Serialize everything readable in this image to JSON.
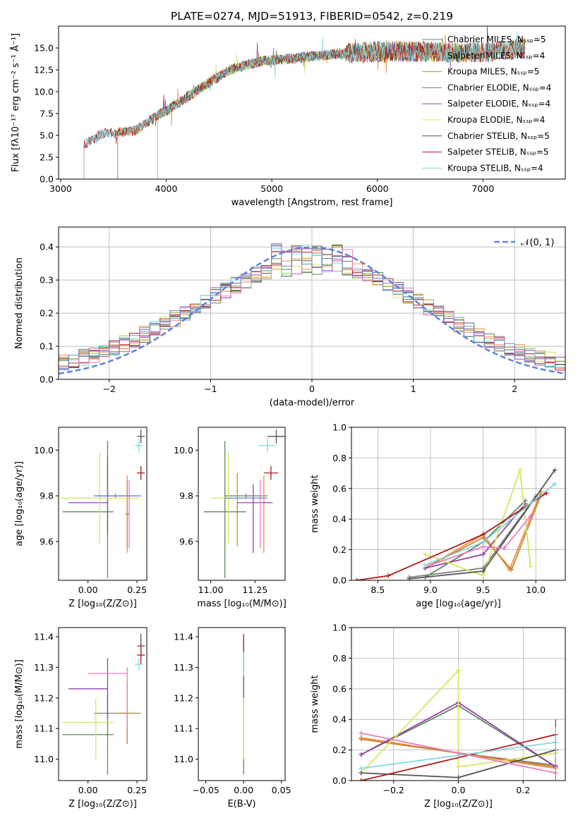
{
  "figure": {
    "title": "PLATE=0274, MJD=51913, FIBERID=0542, z=0.219"
  },
  "chart_data": [
    {
      "id": "spectrum",
      "type": "line",
      "xlabel": "wavelength [Angstrom, rest frame]",
      "ylabel": "Flux [fλ10⁻¹⁷ erg cm⁻² s⁻¹ Å⁻¹]",
      "xlim": [
        2980,
        7780
      ],
      "ylim": [
        0,
        17.5
      ],
      "xticks": [
        3000,
        4000,
        5000,
        6000,
        7000
      ],
      "yticks": [
        0.0,
        2.5,
        5.0,
        7.5,
        10.0,
        12.5,
        15.0
      ],
      "xtick_labels": [
        "3000",
        "4000",
        "5000",
        "6000",
        "7000"
      ],
      "ytick_labels": [
        "0.0",
        "2.5",
        "5.0",
        "7.5",
        "10.0",
        "12.5",
        "15.0"
      ],
      "legend_position": "right",
      "series": [
        {
          "name": "Chabrier MILES, N_SSP=5",
          "color": "#808080",
          "x_start": 3540,
          "x_end": 7400
        },
        {
          "name": "Salpeter MILES, N_SSP=4",
          "color": "#f28a4a",
          "x_start": 3540,
          "x_end": 7400
        },
        {
          "name": "Kroupa MILES, N_SSP=5",
          "color": "#c58a2c",
          "x_start": 3540,
          "x_end": 7400
        },
        {
          "name": "Chabrier ELODIE, N_SSP=4",
          "color": "#5c8a5c",
          "x_start": 3920,
          "x_end": 6800
        },
        {
          "name": "Salpeter ELODIE, N_SSP=4",
          "color": "#9a3fb0",
          "x_start": 3920,
          "x_end": 6800
        },
        {
          "name": "Kroupa ELODIE, N_SSP=4",
          "color": "#d9e55a",
          "x_start": 3920,
          "x_end": 6800
        },
        {
          "name": "Chabrier STELIB, N_SSP=5",
          "color": "#555555",
          "x_start": 3220,
          "x_end": 7400
        },
        {
          "name": "Salpeter STELIB, N_SSP=5",
          "color": "#b01c1c",
          "x_start": 3220,
          "x_end": 7400
        },
        {
          "name": "Kroupa STELIB, N_SSP=4",
          "color": "#7fd8e0",
          "x_start": 3220,
          "x_end": 7400
        }
      ],
      "continuum": {
        "x": [
          3220,
          3400,
          3700,
          3900,
          4000,
          4300,
          4600,
          4900,
          5200,
          5500,
          5800,
          6100,
          6400,
          6800,
          7100,
          7400
        ],
        "y": [
          4.0,
          5.2,
          5.5,
          7.2,
          7.8,
          10.2,
          12.5,
          13.5,
          13.8,
          14.2,
          14.5,
          14.6,
          14.6,
          14.4,
          14.6,
          15.0
        ]
      }
    },
    {
      "id": "residuals",
      "type": "line",
      "xlabel": "(data-model)/error",
      "ylabel": "Normed distribution",
      "xlim": [
        -2.5,
        2.5
      ],
      "ylim": [
        0,
        0.46
      ],
      "xticks": [
        -2,
        -1,
        0,
        1,
        2
      ],
      "yticks": [
        0.0,
        0.1,
        0.2,
        0.3,
        0.4
      ],
      "xtick_labels": [
        "−2",
        "−1",
        "0",
        "1",
        "2"
      ],
      "ytick_labels": [
        "0.0",
        "0.1",
        "0.2",
        "0.3",
        "0.4"
      ],
      "grid": true,
      "legend_position": "top-right",
      "legend": "𝒩(0, 1)",
      "reference_curve": {
        "name": "𝒩(0, 1)",
        "color": "#5e84d6"
      }
    },
    {
      "id": "age-vs-z",
      "type": "scatter",
      "xlabel": "Z [log₁₀(Z/Z⊙)]",
      "ylabel": "age [log₁₀(age/yr)]",
      "xlim": [
        -0.15,
        0.3
      ],
      "ylim": [
        9.43,
        10.1
      ],
      "xticks": [
        0.0,
        0.25
      ],
      "yticks": [
        9.6,
        9.8,
        10.0
      ],
      "xtick_labels": [
        "0.00",
        "0.25"
      ],
      "ytick_labels": [
        "9.6",
        "9.8",
        "10.0"
      ],
      "points": [
        {
          "color": "#808080",
          "x": 0.14,
          "y": 9.8,
          "xerr": 0.1,
          "yerr": 0.01
        },
        {
          "color": "#f28a4a",
          "x": 0.2,
          "y": 9.72,
          "xerr": 0.01,
          "yerr": 0.17
        },
        {
          "color": "#c58a2c",
          "x": 0.2,
          "y": 9.72,
          "xerr": 0.01,
          "yerr": 0.15
        },
        {
          "color": "#5c8a5c",
          "x": 0.0,
          "y": 9.73,
          "xerr": 0.13,
          "yerr": 0.0
        },
        {
          "color": "#5c8a5c",
          "x": 0.1,
          "y": 9.74,
          "xerr": 0.0,
          "yerr": 0.3
        },
        {
          "color": "#9a3fb0",
          "x": 0.1,
          "y": 9.8,
          "xerr": 0.0,
          "yerr": 0.17
        },
        {
          "color": "#9a3fb0",
          "x": 0.0,
          "y": 9.77,
          "xerr": 0.1,
          "yerr": 0.0
        },
        {
          "color": "#d9e55a",
          "x": 0.06,
          "y": 9.79,
          "xerr": 0.2,
          "yerr": 0.0
        },
        {
          "color": "#d9e55a",
          "x": 0.06,
          "y": 9.79,
          "xerr": 0.0,
          "yerr": 0.2
        },
        {
          "color": "#555555",
          "x": 0.27,
          "y": 10.06,
          "xerr": 0.02,
          "yerr": 0.03
        },
        {
          "color": "#b01c1c",
          "x": 0.27,
          "y": 9.9,
          "xerr": 0.02,
          "yerr": 0.03
        },
        {
          "color": "#7fd8e0",
          "x": 0.26,
          "y": 10.02,
          "xerr": 0.02,
          "yerr": 0.03
        },
        {
          "color": "#e87ec1",
          "x": 0.21,
          "y": 9.72,
          "xerr": 0.0,
          "yerr": 0.15
        },
        {
          "color": "#6688cc",
          "x": 0.15,
          "y": 9.8,
          "xerr": 0.12,
          "yerr": 0.0
        }
      ]
    },
    {
      "id": "age-vs-mass",
      "type": "scatter",
      "xlabel": "mass [log₁₀(M/M⊙)]",
      "ylabel": "",
      "xlim": [
        10.93,
        11.42
      ],
      "ylim": [
        9.43,
        10.1
      ],
      "xticks": [
        11.0,
        11.25
      ],
      "yticks": [
        9.6,
        9.8,
        10.0
      ],
      "xtick_labels": [
        "11.00",
        "11.25"
      ],
      "ytick_labels": [
        "9.6",
        "9.8",
        "10.0"
      ]
    },
    {
      "id": "massweight-vs-age",
      "type": "line",
      "xlabel": "age  [log₁₀(age/yr)]",
      "ylabel": "mass weight",
      "xlim": [
        8.25,
        10.28
      ],
      "ylim": [
        0,
        1
      ],
      "xticks": [
        8.5,
        9.0,
        9.5,
        10.0
      ],
      "yticks": [
        0.0,
        0.2,
        0.4,
        0.6,
        0.8,
        1.0
      ],
      "xtick_labels": [
        "8.5",
        "9.0",
        "9.5",
        "10.0"
      ],
      "ytick_labels": [
        "0.0",
        "0.2",
        "0.4",
        "0.6",
        "0.8",
        "1.0"
      ],
      "grid": true,
      "series": [
        {
          "color": "#808080",
          "x": [
            8.8,
            9.5,
            10.0
          ],
          "y": [
            0.02,
            0.08,
            0.55
          ]
        },
        {
          "color": "#f28a4a",
          "x": [
            8.95,
            9.5,
            9.75,
            10.05
          ],
          "y": [
            0.08,
            0.3,
            0.07,
            0.58
          ]
        },
        {
          "color": "#c58a2c",
          "x": [
            8.95,
            9.5,
            9.77,
            10.05
          ],
          "y": [
            0.08,
            0.28,
            0.07,
            0.56
          ]
        },
        {
          "color": "#5c8a5c",
          "x": [
            8.95,
            9.5,
            9.9
          ],
          "y": [
            0.02,
            0.25,
            0.52
          ]
        },
        {
          "color": "#9a3fb0",
          "x": [
            8.95,
            9.5,
            9.9
          ],
          "y": [
            0.08,
            0.17,
            0.5
          ]
        },
        {
          "color": "#d9e55a",
          "x": [
            8.95,
            9.5,
            9.85,
            9.95
          ],
          "y": [
            0.17,
            0.03,
            0.72,
            0.09
          ]
        },
        {
          "color": "#555555",
          "x": [
            8.8,
            9.5,
            10.18
          ],
          "y": [
            0.01,
            0.06,
            0.72
          ]
        },
        {
          "color": "#b01c1c",
          "x": [
            8.3,
            8.6,
            9.5,
            10.1
          ],
          "y": [
            0.0,
            0.03,
            0.3,
            0.57
          ]
        },
        {
          "color": "#7fd8e0",
          "x": [
            8.95,
            9.5,
            10.18
          ],
          "y": [
            0.1,
            0.25,
            0.63
          ]
        },
        {
          "color": "#e87ec1",
          "x": [
            9.0,
            9.5,
            9.7,
            9.95
          ],
          "y": [
            0.1,
            0.22,
            0.21,
            0.42
          ]
        }
      ]
    },
    {
      "id": "mass-vs-z",
      "type": "scatter",
      "xlabel": "Z [log₁₀(Z/Z⊙)]",
      "ylabel": "mass [log₁₀(M/M⊙)]",
      "xlim": [
        -0.15,
        0.3
      ],
      "ylim": [
        10.93,
        11.43
      ],
      "xticks": [
        0.0,
        0.25
      ],
      "yticks": [
        11.0,
        11.1,
        11.2,
        11.3,
        11.4
      ],
      "xtick_labels": [
        "0.00",
        "0.25"
      ],
      "ytick_labels": [
        "11.0",
        "11.1",
        "11.2",
        "11.3",
        "11.4"
      ]
    },
    {
      "id": "mass-vs-ebv",
      "type": "scatter",
      "xlabel": "E(B-V)",
      "ylabel": "",
      "xlim": [
        -0.06,
        0.055
      ],
      "ylim": [
        10.93,
        11.43
      ],
      "xticks": [
        -0.05,
        0.0,
        0.05
      ],
      "yticks": [
        11.0,
        11.1,
        11.2,
        11.3,
        11.4
      ],
      "xtick_labels": [
        "−0.05",
        "0.00",
        "0.05"
      ],
      "ytick_labels": [
        "11.0",
        "11.1",
        "11.2",
        "11.3",
        "11.4"
      ]
    },
    {
      "id": "massweight-vs-z",
      "type": "line",
      "xlabel": "Z [log₁₀(Z/Z⊙)]",
      "ylabel": "mass weight",
      "xlim": [
        -0.33,
        0.33
      ],
      "ylim": [
        0,
        1
      ],
      "xticks": [
        -0.2,
        0.0,
        0.2
      ],
      "yticks": [
        0.0,
        0.2,
        0.4,
        0.6,
        0.8,
        1.0
      ],
      "xtick_labels": [
        "−0.2",
        "0.0",
        "0.2"
      ],
      "ytick_labels": [
        "0.0",
        "0.2",
        "0.4",
        "0.6",
        "0.8",
        "1.0"
      ],
      "grid": true,
      "series": [
        {
          "color": "#808080",
          "x": [
            -0.3,
            0.0,
            0.3
          ],
          "y": [
            0.28,
            0.18,
            0.1
          ]
        },
        {
          "color": "#f28a4a",
          "x": [
            -0.3,
            0.0,
            0.3
          ],
          "y": [
            0.28,
            0.18,
            0.08
          ]
        },
        {
          "color": "#c58a2c",
          "x": [
            -0.3,
            0.0,
            0.3
          ],
          "y": [
            0.27,
            0.18,
            0.09
          ]
        },
        {
          "color": "#5c8a5c",
          "x": [
            -0.3,
            0.0,
            0.3
          ],
          "y": [
            0.17,
            0.49,
            0.09
          ]
        },
        {
          "color": "#9a3fb0",
          "x": [
            -0.3,
            0.0,
            0.3
          ],
          "y": [
            0.17,
            0.51,
            0.09
          ]
        },
        {
          "color": "#d9e55a",
          "x": [
            -0.3,
            0.0,
            0.0,
            0.3
          ],
          "y": [
            0.05,
            0.72,
            0.09,
            0.18
          ]
        },
        {
          "color": "#555555",
          "x": [
            -0.3,
            0.0,
            0.3
          ],
          "y": [
            0.05,
            0.02,
            0.2
          ]
        },
        {
          "color": "#b01c1c",
          "x": [
            -0.3,
            0.3
          ],
          "y": [
            0.0,
            0.3
          ]
        },
        {
          "color": "#7fd8e0",
          "x": [
            -0.3,
            0.3
          ],
          "y": [
            0.08,
            0.25
          ]
        },
        {
          "color": "#e87ec1",
          "x": [
            -0.3,
            0.0,
            0.3
          ],
          "y": [
            0.31,
            0.18,
            0.05
          ]
        }
      ],
      "error_bars_at_x": 0.3
    }
  ]
}
